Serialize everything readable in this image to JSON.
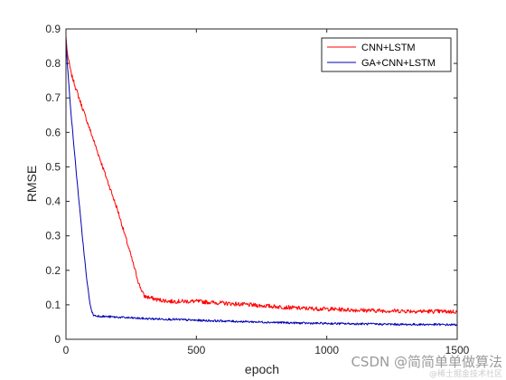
{
  "chart_data": {
    "type": "line",
    "xlabel": "epoch",
    "ylabel": "RMSE",
    "xlim": [
      0,
      1500
    ],
    "ylim": [
      0,
      0.9
    ],
    "xticks": [
      0,
      500,
      1000,
      1500
    ],
    "yticks": [
      0,
      0.1,
      0.2,
      0.3,
      0.4,
      0.5,
      0.6,
      0.7,
      0.8,
      0.9
    ],
    "grid": false,
    "legend_position": "top-right",
    "series": [
      {
        "name": "CNN+LSTM",
        "color": "#ff0000",
        "x": [
          0,
          5,
          20,
          50,
          100,
          150,
          200,
          250,
          280,
          300,
          350,
          400,
          500,
          600,
          700,
          800,
          900,
          1000,
          1100,
          1200,
          1300,
          1400,
          1500
        ],
        "y": [
          0.88,
          0.83,
          0.77,
          0.7,
          0.59,
          0.48,
          0.37,
          0.24,
          0.16,
          0.125,
          0.115,
          0.11,
          0.11,
          0.105,
          0.1,
          0.095,
          0.09,
          0.088,
          0.085,
          0.083,
          0.082,
          0.081,
          0.08
        ]
      },
      {
        "name": "GA+CNN+LSTM",
        "color": "#0000b4",
        "x": [
          0,
          5,
          20,
          40,
          60,
          80,
          95,
          105,
          115,
          150,
          200,
          300,
          400,
          500,
          600,
          700,
          800,
          900,
          1000,
          1100,
          1200,
          1300,
          1400,
          1500
        ],
        "y": [
          0.87,
          0.8,
          0.65,
          0.48,
          0.32,
          0.17,
          0.09,
          0.07,
          0.068,
          0.066,
          0.064,
          0.06,
          0.058,
          0.055,
          0.053,
          0.051,
          0.049,
          0.047,
          0.046,
          0.045,
          0.044,
          0.043,
          0.043,
          0.042
        ]
      }
    ]
  },
  "watermark": {
    "csdn": "CSDN @简简单单做算法",
    "faint": "@稀土掘金技术社区"
  }
}
